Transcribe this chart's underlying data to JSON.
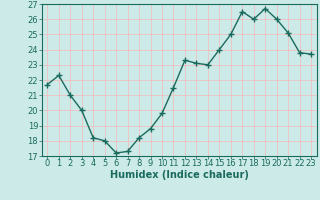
{
  "x": [
    0,
    1,
    2,
    3,
    4,
    5,
    6,
    7,
    8,
    9,
    10,
    11,
    12,
    13,
    14,
    15,
    16,
    17,
    18,
    19,
    20,
    21,
    22,
    23
  ],
  "y": [
    21.7,
    22.3,
    21.0,
    20.0,
    18.2,
    18.0,
    17.2,
    17.3,
    18.2,
    18.8,
    19.8,
    21.5,
    23.3,
    23.1,
    23.0,
    24.0,
    25.0,
    26.5,
    26.0,
    26.7,
    26.0,
    25.1,
    23.8,
    23.7
  ],
  "xlabel": "Humidex (Indice chaleur)",
  "ylim": [
    17,
    27
  ],
  "xlim": [
    -0.5,
    23.5
  ],
  "yticks": [
    17,
    18,
    19,
    20,
    21,
    22,
    23,
    24,
    25,
    26,
    27
  ],
  "xticks": [
    0,
    1,
    2,
    3,
    4,
    5,
    6,
    7,
    8,
    9,
    10,
    11,
    12,
    13,
    14,
    15,
    16,
    17,
    18,
    19,
    20,
    21,
    22,
    23
  ],
  "xtick_labels": [
    "0",
    "1",
    "2",
    "3",
    "4",
    "5",
    "6",
    "7",
    "8",
    "9",
    "10",
    "11",
    "12",
    "13",
    "14",
    "15",
    "16",
    "17",
    "18",
    "19",
    "20",
    "21",
    "22",
    "23"
  ],
  "line_color": "#1a6b5e",
  "marker": "+",
  "bg_color": "#cceae7",
  "grid_color": "#f5b8b8",
  "axis_color": "#1a6b5e",
  "tick_color": "#1a6b5e",
  "label_color": "#1a6b5e",
  "linewidth": 1.0,
  "markersize": 4,
  "markeredgewidth": 1.0,
  "xlabel_fontsize": 7,
  "tick_fontsize": 6
}
